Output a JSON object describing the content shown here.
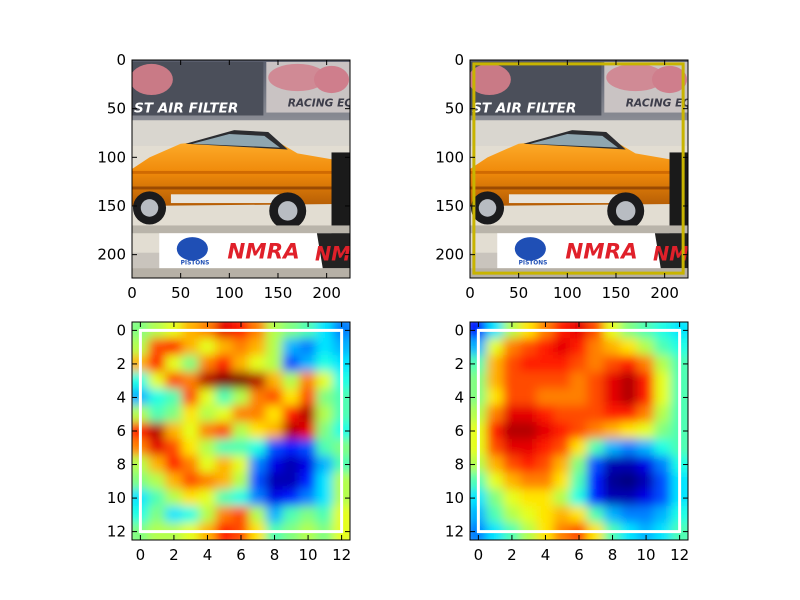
{
  "chart_data": [
    {
      "type": "image",
      "title": "",
      "image_description": "photo of an orange drag-racing car with banners (top-left, original image)",
      "image_text": [
        "ST AIR FILTER",
        "RACING EQ",
        "PISTONS",
        "NMRA",
        "NM"
      ],
      "xlim": [
        0,
        224
      ],
      "ylim": [
        224,
        0
      ],
      "x_ticks": [
        "0",
        "50",
        "100",
        "150",
        "200"
      ],
      "y_ticks": [
        "0",
        "50",
        "100",
        "150",
        "200"
      ]
    },
    {
      "type": "image",
      "title": "",
      "image_description": "same photo with a yellow bounding box overlay",
      "box_color": "#c8b400",
      "box": {
        "x0": 4,
        "y0": 4,
        "x1": 219,
        "y1": 219
      },
      "xlim": [
        0,
        224
      ],
      "ylim": [
        224,
        0
      ],
      "x_ticks": [
        "0",
        "50",
        "100",
        "150",
        "200"
      ],
      "y_ticks": [
        "0",
        "50",
        "100",
        "150",
        "200"
      ]
    },
    {
      "type": "heatmap",
      "title": "",
      "colormap": "jet",
      "interpolation": "bilinear",
      "xlim": [
        -0.5,
        12.5
      ],
      "ylim": [
        12.5,
        -0.5
      ],
      "x_ticks": [
        "0",
        "2",
        "4",
        "6",
        "8",
        "10",
        "12"
      ],
      "y_ticks": [
        "0",
        "2",
        "4",
        "6",
        "8",
        "10",
        "12"
      ],
      "box_color": "#ffffff",
      "box": {
        "x0": 0,
        "y0": 0,
        "x1": 12,
        "y1": 12
      },
      "values": [
        [
          0.5,
          0.55,
          0.6,
          0.7,
          0.75,
          0.9,
          0.85,
          0.75,
          0.55,
          0.5,
          0.45,
          0.35,
          0.25
        ],
        [
          0.55,
          0.8,
          0.85,
          0.7,
          0.6,
          0.7,
          0.75,
          0.7,
          0.55,
          0.3,
          0.25,
          0.35,
          0.3
        ],
        [
          0.7,
          0.85,
          0.6,
          0.5,
          0.75,
          0.85,
          0.7,
          0.6,
          0.55,
          0.2,
          0.3,
          0.4,
          0.35
        ],
        [
          0.4,
          0.6,
          0.8,
          0.75,
          0.95,
          1.0,
          1.0,
          0.95,
          0.7,
          0.55,
          0.75,
          0.6,
          0.4
        ],
        [
          0.3,
          0.4,
          0.45,
          0.8,
          0.6,
          0.45,
          0.55,
          0.75,
          0.8,
          0.65,
          0.8,
          0.5,
          0.45
        ],
        [
          0.55,
          0.45,
          0.5,
          0.65,
          0.55,
          0.6,
          0.75,
          0.75,
          0.65,
          0.85,
          0.95,
          0.55,
          0.45
        ],
        [
          0.85,
          0.95,
          0.7,
          0.6,
          0.75,
          0.8,
          0.55,
          0.65,
          0.7,
          0.95,
          0.9,
          0.5,
          0.4
        ],
        [
          0.75,
          0.9,
          0.8,
          0.65,
          0.55,
          0.45,
          0.45,
          0.4,
          0.2,
          0.15,
          0.2,
          0.45,
          0.5
        ],
        [
          0.55,
          0.7,
          0.85,
          0.75,
          0.6,
          0.7,
          0.6,
          0.25,
          0.1,
          0.05,
          0.1,
          0.3,
          0.45
        ],
        [
          0.5,
          0.55,
          0.7,
          0.8,
          0.75,
          0.7,
          0.55,
          0.2,
          0.05,
          0.05,
          0.15,
          0.35,
          0.55
        ],
        [
          0.35,
          0.45,
          0.55,
          0.65,
          0.6,
          0.45,
          0.4,
          0.25,
          0.1,
          0.15,
          0.25,
          0.35,
          0.55
        ],
        [
          0.4,
          0.5,
          0.35,
          0.4,
          0.55,
          0.75,
          0.8,
          0.55,
          0.3,
          0.45,
          0.5,
          0.45,
          0.6
        ],
        [
          0.5,
          0.55,
          0.55,
          0.6,
          0.7,
          0.85,
          0.8,
          0.65,
          0.45,
          0.5,
          0.55,
          0.5,
          0.6
        ]
      ]
    },
    {
      "type": "heatmap",
      "title": "",
      "colormap": "jet",
      "interpolation": "bilinear",
      "xlim": [
        -0.5,
        12.5
      ],
      "ylim": [
        12.5,
        -0.5
      ],
      "x_ticks": [
        "0",
        "2",
        "4",
        "6",
        "8",
        "10",
        "12"
      ],
      "y_ticks": [
        "0",
        "2",
        "4",
        "6",
        "8",
        "10",
        "12"
      ],
      "box_color": "#ffffff",
      "box": {
        "x0": 0,
        "y0": 0,
        "x1": 12,
        "y1": 12
      },
      "values": [
        [
          0.15,
          0.35,
          0.55,
          0.65,
          0.75,
          0.85,
          0.9,
          0.8,
          0.6,
          0.5,
          0.45,
          0.4,
          0.35
        ],
        [
          0.3,
          0.6,
          0.75,
          0.8,
          0.85,
          0.9,
          0.85,
          0.75,
          0.7,
          0.65,
          0.55,
          0.45,
          0.4
        ],
        [
          0.45,
          0.7,
          0.8,
          0.85,
          0.85,
          0.85,
          0.8,
          0.75,
          0.8,
          0.85,
          0.75,
          0.55,
          0.45
        ],
        [
          0.5,
          0.7,
          0.8,
          0.8,
          0.8,
          0.8,
          0.75,
          0.8,
          0.9,
          0.95,
          0.85,
          0.6,
          0.45
        ],
        [
          0.5,
          0.65,
          0.8,
          0.8,
          0.75,
          0.75,
          0.75,
          0.8,
          0.9,
          0.95,
          0.85,
          0.6,
          0.45
        ],
        [
          0.55,
          0.75,
          0.9,
          0.9,
          0.85,
          0.8,
          0.8,
          0.8,
          0.85,
          0.85,
          0.75,
          0.55,
          0.45
        ],
        [
          0.6,
          0.85,
          0.95,
          0.95,
          0.9,
          0.85,
          0.8,
          0.75,
          0.7,
          0.65,
          0.6,
          0.5,
          0.45
        ],
        [
          0.6,
          0.8,
          0.9,
          0.9,
          0.85,
          0.8,
          0.65,
          0.45,
          0.3,
          0.25,
          0.3,
          0.4,
          0.45
        ],
        [
          0.55,
          0.7,
          0.8,
          0.85,
          0.8,
          0.7,
          0.5,
          0.2,
          0.05,
          0.05,
          0.1,
          0.25,
          0.4
        ],
        [
          0.45,
          0.6,
          0.7,
          0.75,
          0.75,
          0.65,
          0.45,
          0.15,
          0.02,
          0.0,
          0.05,
          0.2,
          0.35
        ],
        [
          0.35,
          0.5,
          0.6,
          0.65,
          0.65,
          0.55,
          0.4,
          0.15,
          0.05,
          0.05,
          0.1,
          0.2,
          0.35
        ],
        [
          0.3,
          0.45,
          0.55,
          0.6,
          0.65,
          0.7,
          0.65,
          0.45,
          0.3,
          0.25,
          0.25,
          0.3,
          0.4
        ],
        [
          0.25,
          0.35,
          0.45,
          0.55,
          0.65,
          0.75,
          0.8,
          0.65,
          0.45,
          0.35,
          0.3,
          0.35,
          0.45
        ]
      ]
    }
  ]
}
